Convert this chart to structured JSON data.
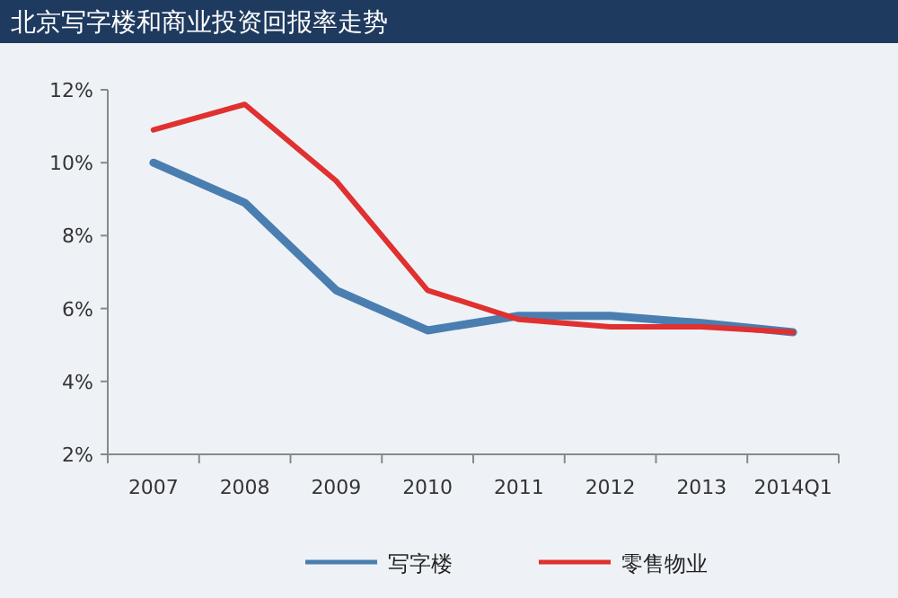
{
  "chart_data": {
    "type": "line",
    "title": "北京写字楼和商业投资回报率走势",
    "categories": [
      "2007",
      "2008",
      "2009",
      "2010",
      "2011",
      "2012",
      "2013",
      "2014Q1"
    ],
    "series": [
      {
        "name": "写字楼",
        "color": "#4a7eb0",
        "values": [
          10.0,
          8.9,
          6.5,
          5.4,
          5.8,
          5.8,
          5.6,
          5.35
        ]
      },
      {
        "name": "零售物业",
        "color": "#e03030",
        "values": [
          10.9,
          11.6,
          9.5,
          6.5,
          5.7,
          5.5,
          5.5,
          5.35
        ]
      }
    ],
    "ylim": [
      2,
      12
    ],
    "yticks": [
      {
        "value": 2,
        "label": "2%"
      },
      {
        "value": 4,
        "label": "4%"
      },
      {
        "value": 6,
        "label": "6%"
      },
      {
        "value": 8,
        "label": "8%"
      },
      {
        "value": 10,
        "label": "10%"
      },
      {
        "value": 12,
        "label": "12%"
      }
    ],
    "grid": false,
    "legend": "bottom",
    "marker": "none",
    "line_style": "solid"
  }
}
